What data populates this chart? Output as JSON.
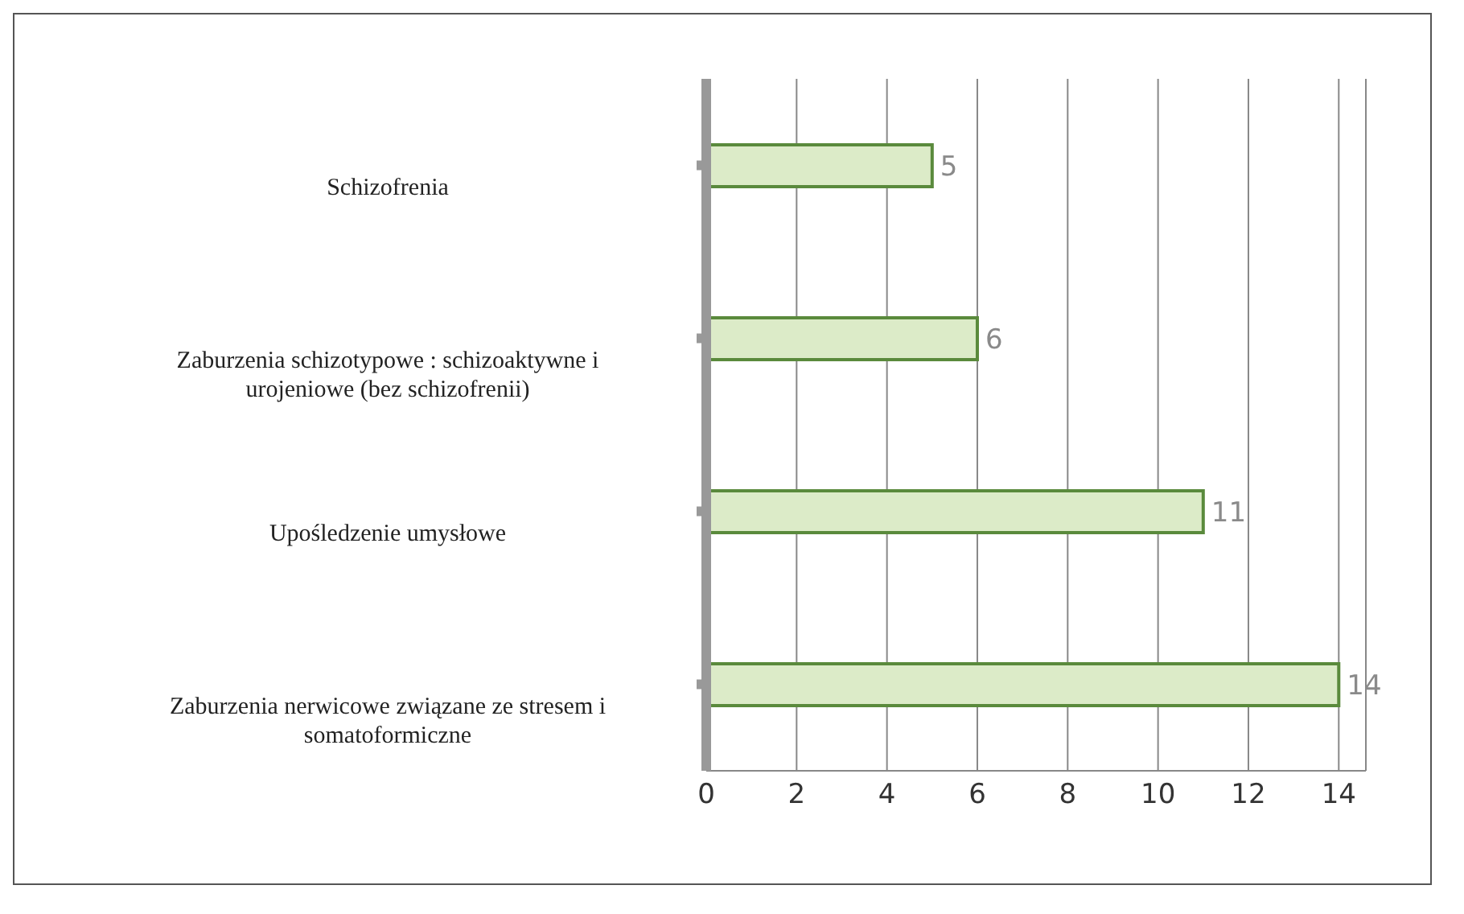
{
  "chart_data": {
    "type": "bar",
    "orientation": "horizontal",
    "categories": [
      "Schizofrenia",
      "Zaburzenia schizotypowe : schizoaktywne i urojeniowe (bez schizofrenii)",
      "Upośledzenie umysłowe",
      "Zaburzenia nerwicowe związane ze stresem i somatoformiczne"
    ],
    "values": [
      5,
      6,
      11,
      14
    ],
    "color": "#dcebc8",
    "data_labels": true,
    "xlim": [
      0,
      14.6
    ],
    "xticks": [
      0,
      2,
      4,
      6,
      8,
      10,
      12,
      14
    ],
    "grid": "x",
    "legend": false
  }
}
